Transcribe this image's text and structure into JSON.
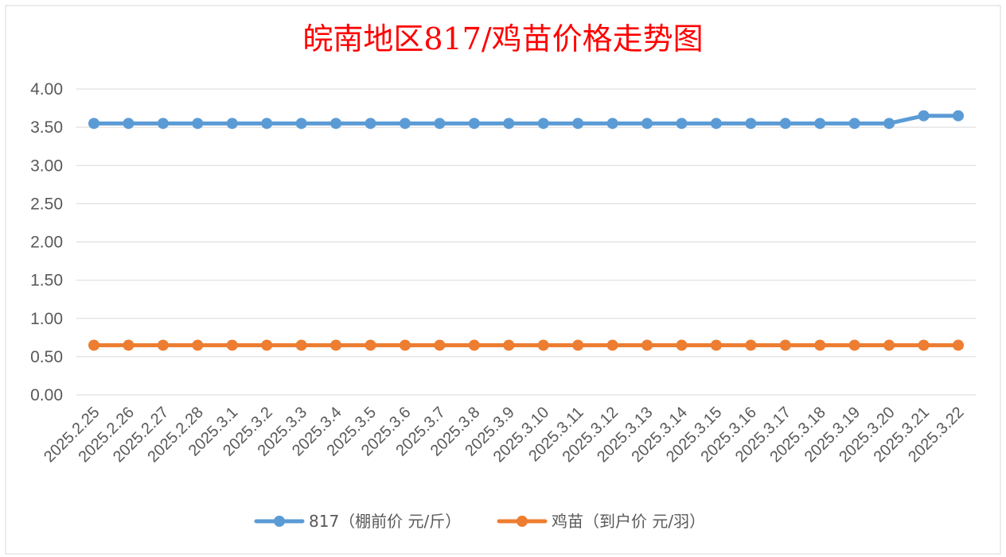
{
  "chart_data": {
    "type": "line",
    "title": "皖南地区817/鸡苗价格走势图",
    "xlabel": "",
    "ylabel": "",
    "ylim": [
      0,
      4
    ],
    "yticks": [
      "0.00",
      "0.50",
      "1.00",
      "1.50",
      "2.00",
      "2.50",
      "3.00",
      "3.50",
      "4.00"
    ],
    "grid": true,
    "legend_position": "bottom",
    "categories": [
      "2025.2.25",
      "2025.2.26",
      "2025.2.27",
      "2025.2.28",
      "2025.3.1",
      "2025.3.2",
      "2025.3.3",
      "2025.3.4",
      "2025.3.5",
      "2025.3.6",
      "2025.3.7",
      "2025.3.8",
      "2025.3.9",
      "2025.3.10",
      "2025.3.11",
      "2025.3.12",
      "2025.3.13",
      "2025.3.14",
      "2025.3.15",
      "2025.3.16",
      "2025.3.17",
      "2025.3.18",
      "2025.3.19",
      "2025.3.20",
      "2025.3.21",
      "2025.3.22"
    ],
    "series": [
      {
        "name": "817（棚前价 元/斤）",
        "color": "#5b9bd5",
        "values": [
          3.55,
          3.55,
          3.55,
          3.55,
          3.55,
          3.55,
          3.55,
          3.55,
          3.55,
          3.55,
          3.55,
          3.55,
          3.55,
          3.55,
          3.55,
          3.55,
          3.55,
          3.55,
          3.55,
          3.55,
          3.55,
          3.55,
          3.55,
          3.55,
          3.65,
          3.65
        ]
      },
      {
        "name": "鸡苗（到户价 元/羽）",
        "color": "#ed7d31",
        "values": [
          0.65,
          0.65,
          0.65,
          0.65,
          0.65,
          0.65,
          0.65,
          0.65,
          0.65,
          0.65,
          0.65,
          0.65,
          0.65,
          0.65,
          0.65,
          0.65,
          0.65,
          0.65,
          0.65,
          0.65,
          0.65,
          0.65,
          0.65,
          0.65,
          0.65,
          0.65
        ]
      }
    ]
  }
}
